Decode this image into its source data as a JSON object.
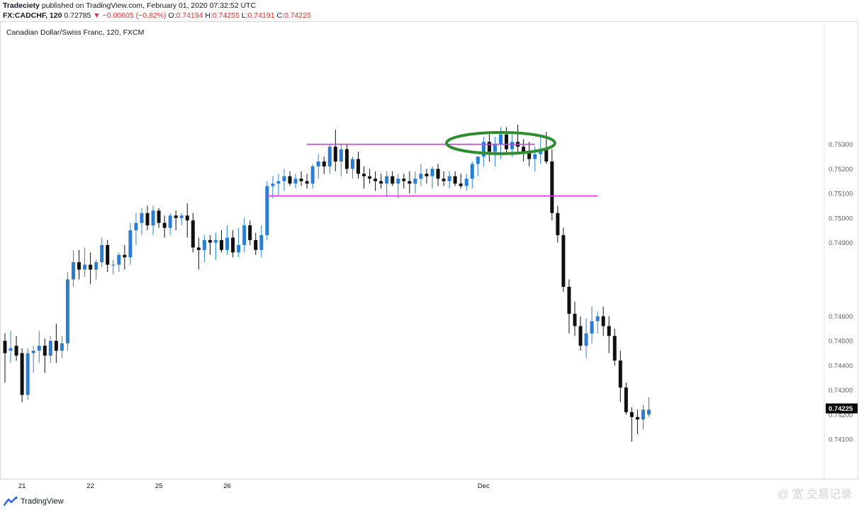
{
  "header": {
    "author": "Tradeciety",
    "published_text": "published on TradingView.com, February 01, 2020 07:32:52 UTC",
    "symbol": "FX:CADCHF, 120",
    "last": "0.72785",
    "change": "−0.00605 (−0.82%)",
    "o_label": "O:",
    "o_value": "0.74194",
    "h_label": "H:",
    "h_value": "0.74255",
    "l_label": "L:",
    "l_value": "0.74191",
    "c_label": "C:",
    "c_value": "0.74225"
  },
  "instrument_title": "Canadian Dollar/Swiss Franc, 120, FXCM",
  "footer": {
    "brand": "TradingView",
    "watermark": "@ 宽 交易记录"
  },
  "colors": {
    "up": "#2a7fd4",
    "down": "#101010",
    "resistance_lines": "#e033e6",
    "ellipse": "#2f8f2f",
    "price_tag_bg": "#000000",
    "price_tag_text": "#ffffff"
  },
  "chart_data": {
    "type": "candlestick",
    "title": "Canadian Dollar/Swiss Franc, 120, FXCM",
    "price_axis": {
      "range": [
        0.7395,
        0.7572
      ],
      "tick_labels": [
        "0.75300",
        "0.75200",
        "0.75100",
        "0.75000",
        "0.74900",
        "0.74600",
        "0.74500",
        "0.74400",
        "0.74300",
        "0.74200",
        "0.74100"
      ],
      "tick_values": [
        0.753,
        0.752,
        0.751,
        0.75,
        0.749,
        0.746,
        0.745,
        0.744,
        0.743,
        0.742,
        0.741
      ],
      "current_price": "0.74225",
      "current_value": 0.74225
    },
    "time_axis": {
      "labels": [
        "21",
        "22",
        "25",
        "26",
        "Dec"
      ],
      "label_bar_index": [
        3,
        15,
        27,
        39,
        84
      ]
    },
    "horizontal_levels": [
      {
        "price": 0.753,
        "from_bar": 53,
        "to_bar": 93
      },
      {
        "price": 0.7509,
        "from_bar": 46,
        "to_bar": 104
      }
    ],
    "highlight_ellipse": {
      "center_bar": 87,
      "center_price": 0.75305,
      "half_width_bars": 9.5,
      "half_height_price": 0.00043
    },
    "candles": [
      {
        "o": 0.745,
        "h": 0.7453,
        "l": 0.7433,
        "c": 0.7445
      },
      {
        "o": 0.7446,
        "h": 0.7454,
        "l": 0.7441,
        "c": 0.7447
      },
      {
        "o": 0.7448,
        "h": 0.7452,
        "l": 0.7442,
        "c": 0.7444
      },
      {
        "o": 0.7445,
        "h": 0.7447,
        "l": 0.7425,
        "c": 0.7428
      },
      {
        "o": 0.7428,
        "h": 0.7447,
        "l": 0.7426,
        "c": 0.7445
      },
      {
        "o": 0.7445,
        "h": 0.7448,
        "l": 0.7437,
        "c": 0.7446
      },
      {
        "o": 0.7446,
        "h": 0.7454,
        "l": 0.7441,
        "c": 0.7448
      },
      {
        "o": 0.7448,
        "h": 0.7451,
        "l": 0.7437,
        "c": 0.7444
      },
      {
        "o": 0.7444,
        "h": 0.7452,
        "l": 0.7441,
        "c": 0.745
      },
      {
        "o": 0.745,
        "h": 0.7457,
        "l": 0.7441,
        "c": 0.7446
      },
      {
        "o": 0.7446,
        "h": 0.7452,
        "l": 0.7443,
        "c": 0.7449
      },
      {
        "o": 0.7449,
        "h": 0.7478,
        "l": 0.7446,
        "c": 0.7475
      },
      {
        "o": 0.7475,
        "h": 0.7487,
        "l": 0.7472,
        "c": 0.7482
      },
      {
        "o": 0.7482,
        "h": 0.7487,
        "l": 0.7475,
        "c": 0.7479
      },
      {
        "o": 0.7479,
        "h": 0.7488,
        "l": 0.7476,
        "c": 0.7481
      },
      {
        "o": 0.7481,
        "h": 0.7486,
        "l": 0.7473,
        "c": 0.7479
      },
      {
        "o": 0.7479,
        "h": 0.7483,
        "l": 0.7475,
        "c": 0.7482
      },
      {
        "o": 0.7482,
        "h": 0.7492,
        "l": 0.748,
        "c": 0.7489
      },
      {
        "o": 0.7489,
        "h": 0.7491,
        "l": 0.7478,
        "c": 0.7481
      },
      {
        "o": 0.7481,
        "h": 0.7483,
        "l": 0.7477,
        "c": 0.7481
      },
      {
        "o": 0.7481,
        "h": 0.7486,
        "l": 0.7478,
        "c": 0.7485
      },
      {
        "o": 0.7485,
        "h": 0.7489,
        "l": 0.7479,
        "c": 0.7484
      },
      {
        "o": 0.7484,
        "h": 0.7498,
        "l": 0.7481,
        "c": 0.7495
      },
      {
        "o": 0.7495,
        "h": 0.7502,
        "l": 0.7489,
        "c": 0.7498
      },
      {
        "o": 0.7498,
        "h": 0.7504,
        "l": 0.7493,
        "c": 0.7502
      },
      {
        "o": 0.7502,
        "h": 0.7505,
        "l": 0.7495,
        "c": 0.7497
      },
      {
        "o": 0.7497,
        "h": 0.7505,
        "l": 0.7493,
        "c": 0.7503
      },
      {
        "o": 0.7503,
        "h": 0.7504,
        "l": 0.7496,
        "c": 0.7498
      },
      {
        "o": 0.7498,
        "h": 0.7501,
        "l": 0.7492,
        "c": 0.7496
      },
      {
        "o": 0.7496,
        "h": 0.7502,
        "l": 0.7493,
        "c": 0.7501
      },
      {
        "o": 0.7501,
        "h": 0.7503,
        "l": 0.7495,
        "c": 0.75
      },
      {
        "o": 0.75,
        "h": 0.7502,
        "l": 0.7497,
        "c": 0.7501
      },
      {
        "o": 0.7501,
        "h": 0.7506,
        "l": 0.7492,
        "c": 0.7499
      },
      {
        "o": 0.7499,
        "h": 0.7502,
        "l": 0.7486,
        "c": 0.7488
      },
      {
        "o": 0.7488,
        "h": 0.7492,
        "l": 0.7479,
        "c": 0.7487
      },
      {
        "o": 0.7487,
        "h": 0.7493,
        "l": 0.7482,
        "c": 0.7491
      },
      {
        "o": 0.7491,
        "h": 0.7493,
        "l": 0.7485,
        "c": 0.749
      },
      {
        "o": 0.749,
        "h": 0.7494,
        "l": 0.7483,
        "c": 0.7491
      },
      {
        "o": 0.7491,
        "h": 0.7495,
        "l": 0.7486,
        "c": 0.7487
      },
      {
        "o": 0.7487,
        "h": 0.7497,
        "l": 0.7485,
        "c": 0.7492
      },
      {
        "o": 0.7492,
        "h": 0.7495,
        "l": 0.7484,
        "c": 0.7486
      },
      {
        "o": 0.7486,
        "h": 0.7496,
        "l": 0.7484,
        "c": 0.7489
      },
      {
        "o": 0.7489,
        "h": 0.75,
        "l": 0.7486,
        "c": 0.7497
      },
      {
        "o": 0.7497,
        "h": 0.7499,
        "l": 0.7489,
        "c": 0.7491
      },
      {
        "o": 0.7491,
        "h": 0.7494,
        "l": 0.7485,
        "c": 0.7487
      },
      {
        "o": 0.7487,
        "h": 0.7497,
        "l": 0.7484,
        "c": 0.7493
      },
      {
        "o": 0.7493,
        "h": 0.7515,
        "l": 0.7491,
        "c": 0.7513
      },
      {
        "o": 0.7513,
        "h": 0.7517,
        "l": 0.7508,
        "c": 0.7514
      },
      {
        "o": 0.7514,
        "h": 0.7518,
        "l": 0.7509,
        "c": 0.7515
      },
      {
        "o": 0.7515,
        "h": 0.752,
        "l": 0.7511,
        "c": 0.7517
      },
      {
        "o": 0.7517,
        "h": 0.7519,
        "l": 0.7513,
        "c": 0.7514
      },
      {
        "o": 0.7514,
        "h": 0.7518,
        "l": 0.7512,
        "c": 0.7516
      },
      {
        "o": 0.7516,
        "h": 0.7519,
        "l": 0.7513,
        "c": 0.7515
      },
      {
        "o": 0.7515,
        "h": 0.7518,
        "l": 0.7512,
        "c": 0.7514
      },
      {
        "o": 0.7514,
        "h": 0.7522,
        "l": 0.7512,
        "c": 0.7521
      },
      {
        "o": 0.7521,
        "h": 0.7526,
        "l": 0.7516,
        "c": 0.7523
      },
      {
        "o": 0.7523,
        "h": 0.7525,
        "l": 0.7518,
        "c": 0.7521
      },
      {
        "o": 0.7521,
        "h": 0.753,
        "l": 0.7518,
        "c": 0.7529
      },
      {
        "o": 0.7529,
        "h": 0.7536,
        "l": 0.7519,
        "c": 0.7523
      },
      {
        "o": 0.7523,
        "h": 0.753,
        "l": 0.7517,
        "c": 0.7528
      },
      {
        "o": 0.7528,
        "h": 0.753,
        "l": 0.7518,
        "c": 0.752
      },
      {
        "o": 0.752,
        "h": 0.7525,
        "l": 0.7516,
        "c": 0.7524
      },
      {
        "o": 0.7524,
        "h": 0.7527,
        "l": 0.7516,
        "c": 0.7518
      },
      {
        "o": 0.7518,
        "h": 0.7521,
        "l": 0.7512,
        "c": 0.7517
      },
      {
        "o": 0.7517,
        "h": 0.752,
        "l": 0.7514,
        "c": 0.7516
      },
      {
        "o": 0.7516,
        "h": 0.7519,
        "l": 0.7511,
        "c": 0.7515
      },
      {
        "o": 0.7515,
        "h": 0.7518,
        "l": 0.7512,
        "c": 0.7514
      },
      {
        "o": 0.7514,
        "h": 0.7519,
        "l": 0.7509,
        "c": 0.7517
      },
      {
        "o": 0.7517,
        "h": 0.7519,
        "l": 0.7513,
        "c": 0.7514
      },
      {
        "o": 0.7514,
        "h": 0.7518,
        "l": 0.7508,
        "c": 0.7516
      },
      {
        "o": 0.7516,
        "h": 0.7518,
        "l": 0.7512,
        "c": 0.7515
      },
      {
        "o": 0.7515,
        "h": 0.7519,
        "l": 0.751,
        "c": 0.7514
      },
      {
        "o": 0.7514,
        "h": 0.7519,
        "l": 0.751,
        "c": 0.7516
      },
      {
        "o": 0.7516,
        "h": 0.7522,
        "l": 0.7513,
        "c": 0.7518
      },
      {
        "o": 0.7518,
        "h": 0.752,
        "l": 0.7514,
        "c": 0.7517
      },
      {
        "o": 0.7517,
        "h": 0.7521,
        "l": 0.7512,
        "c": 0.752
      },
      {
        "o": 0.752,
        "h": 0.7522,
        "l": 0.7513,
        "c": 0.7516
      },
      {
        "o": 0.7516,
        "h": 0.7519,
        "l": 0.7513,
        "c": 0.7515
      },
      {
        "o": 0.7515,
        "h": 0.7519,
        "l": 0.7512,
        "c": 0.7517
      },
      {
        "o": 0.7517,
        "h": 0.7519,
        "l": 0.7513,
        "c": 0.7514
      },
      {
        "o": 0.7514,
        "h": 0.7518,
        "l": 0.7512,
        "c": 0.7513
      },
      {
        "o": 0.7513,
        "h": 0.7518,
        "l": 0.7511,
        "c": 0.7516
      },
      {
        "o": 0.7516,
        "h": 0.7523,
        "l": 0.7512,
        "c": 0.7522
      },
      {
        "o": 0.7522,
        "h": 0.7525,
        "l": 0.7517,
        "c": 0.7525
      },
      {
        "o": 0.7525,
        "h": 0.7533,
        "l": 0.7521,
        "c": 0.7531
      },
      {
        "o": 0.7531,
        "h": 0.7534,
        "l": 0.7523,
        "c": 0.7527
      },
      {
        "o": 0.7527,
        "h": 0.7533,
        "l": 0.7521,
        "c": 0.753
      },
      {
        "o": 0.753,
        "h": 0.7537,
        "l": 0.7524,
        "c": 0.7534
      },
      {
        "o": 0.7534,
        "h": 0.7537,
        "l": 0.7526,
        "c": 0.7528
      },
      {
        "o": 0.7528,
        "h": 0.7534,
        "l": 0.7525,
        "c": 0.7531
      },
      {
        "o": 0.7531,
        "h": 0.7538,
        "l": 0.7526,
        "c": 0.7529
      },
      {
        "o": 0.7529,
        "h": 0.7532,
        "l": 0.7523,
        "c": 0.7527
      },
      {
        "o": 0.7527,
        "h": 0.7531,
        "l": 0.7521,
        "c": 0.7524
      },
      {
        "o": 0.7524,
        "h": 0.7529,
        "l": 0.7519,
        "c": 0.7526
      },
      {
        "o": 0.7526,
        "h": 0.7533,
        "l": 0.7522,
        "c": 0.7528
      },
      {
        "o": 0.7528,
        "h": 0.7535,
        "l": 0.7522,
        "c": 0.7523
      },
      {
        "o": 0.7523,
        "h": 0.7528,
        "l": 0.7499,
        "c": 0.7502
      },
      {
        "o": 0.7502,
        "h": 0.7505,
        "l": 0.749,
        "c": 0.7493
      },
      {
        "o": 0.7493,
        "h": 0.7496,
        "l": 0.747,
        "c": 0.7472
      },
      {
        "o": 0.7472,
        "h": 0.7475,
        "l": 0.7453,
        "c": 0.7461
      },
      {
        "o": 0.7461,
        "h": 0.7466,
        "l": 0.7452,
        "c": 0.7456
      },
      {
        "o": 0.7456,
        "h": 0.746,
        "l": 0.7446,
        "c": 0.7448
      },
      {
        "o": 0.7448,
        "h": 0.7459,
        "l": 0.7443,
        "c": 0.7453
      },
      {
        "o": 0.7453,
        "h": 0.7464,
        "l": 0.7449,
        "c": 0.7458
      },
      {
        "o": 0.7458,
        "h": 0.7462,
        "l": 0.7453,
        "c": 0.746
      },
      {
        "o": 0.746,
        "h": 0.7464,
        "l": 0.7452,
        "c": 0.7456
      },
      {
        "o": 0.7456,
        "h": 0.746,
        "l": 0.7445,
        "c": 0.7452
      },
      {
        "o": 0.7452,
        "h": 0.7455,
        "l": 0.744,
        "c": 0.7442
      },
      {
        "o": 0.7442,
        "h": 0.7446,
        "l": 0.7425,
        "c": 0.7431
      },
      {
        "o": 0.7431,
        "h": 0.7433,
        "l": 0.742,
        "c": 0.7421
      },
      {
        "o": 0.7421,
        "h": 0.7423,
        "l": 0.7409,
        "c": 0.7419
      },
      {
        "o": 0.7419,
        "h": 0.7422,
        "l": 0.7412,
        "c": 0.7418
      },
      {
        "o": 0.7418,
        "h": 0.7424,
        "l": 0.7414,
        "c": 0.7422
      },
      {
        "o": 0.742,
        "h": 0.7427,
        "l": 0.7419,
        "c": 0.7422
      }
    ]
  }
}
